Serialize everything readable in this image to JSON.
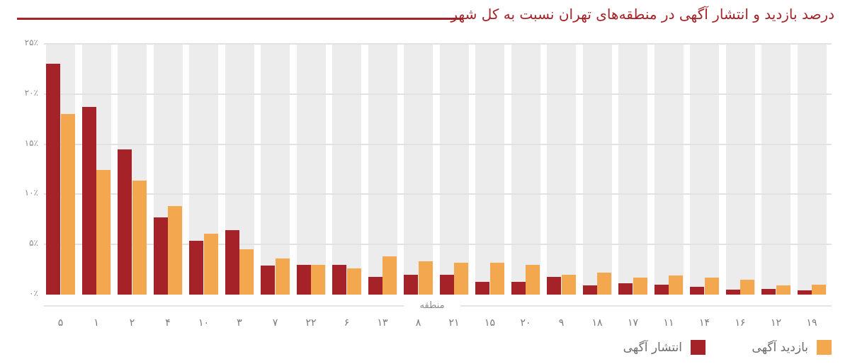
{
  "chart_data": {
    "type": "bar",
    "title": "درصد بازدید و انتشار آگهی در منطقه‌های تهران نسبت به کل شهر",
    "xlabel": "منطقه",
    "ylabel": "",
    "ylim": [
      0,
      25
    ],
    "yticks": [
      "۰٪",
      "۵٪",
      "۱۰٪",
      "۱۵٪",
      "۲۰٪",
      "۲۵٪"
    ],
    "grid": true,
    "legend_position": "bottom-right",
    "categories": [
      "۵",
      "۱",
      "۲",
      "۴",
      "۱۰",
      "۳",
      "۷",
      "۲۲",
      "۶",
      "۱۳",
      "۸",
      "۲۱",
      "۱۵",
      "۲۰",
      "۹",
      "۱۸",
      "۱۷",
      "۱۱",
      "۱۴",
      "۱۶",
      "۱۲",
      "۱۹"
    ],
    "series": [
      {
        "name": "انتشار آگهی",
        "color": "#a52228",
        "values": [
          23.0,
          18.7,
          14.5,
          7.7,
          5.4,
          6.4,
          2.9,
          3.0,
          3.0,
          1.8,
          2.0,
          2.0,
          1.3,
          1.3,
          1.8,
          0.9,
          1.1,
          1.0,
          0.8,
          0.5,
          0.6,
          0.4
        ]
      },
      {
        "name": "بازدید آگهی",
        "color": "#f3a74f",
        "values": [
          18.0,
          12.4,
          11.4,
          8.8,
          6.1,
          4.5,
          3.6,
          3.0,
          2.6,
          3.8,
          3.3,
          3.2,
          3.2,
          3.0,
          2.0,
          2.2,
          1.7,
          1.9,
          1.7,
          1.5,
          0.9,
          1.0
        ]
      }
    ]
  },
  "legend": {
    "publish_label": "انتشار آگهی",
    "visit_label": "بازدید آگهی"
  }
}
